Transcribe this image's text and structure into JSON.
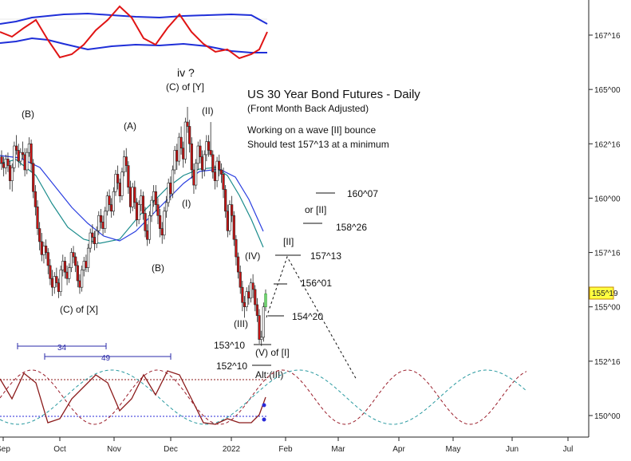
{
  "chart_data": {
    "type": "candlestick",
    "title": "US 30 Year Bond Futures - Daily",
    "subtitle": "(Front Month Back Adjusted)",
    "notes": [
      "Working on a wave [II] bounce",
      "Should test 157^13 at a minimum"
    ],
    "current_price": "155^19",
    "y_ticks": [
      {
        "label": "167^16",
        "value": 167.5
      },
      {
        "label": "165^00",
        "value": 165.0
      },
      {
        "label": "162^16",
        "value": 162.5
      },
      {
        "label": "160^00",
        "value": 160.0
      },
      {
        "label": "157^16",
        "value": 157.5
      },
      {
        "label": "155^00",
        "value": 155.0
      },
      {
        "label": "152^16",
        "value": 152.5
      },
      {
        "label": "150^00",
        "value": 150.0
      }
    ],
    "x_ticks": [
      "Sep",
      "Oct",
      "Nov",
      "Dec",
      "2022",
      "Feb",
      "Mar",
      "Apr",
      "May",
      "Jun",
      "Jul"
    ],
    "wave_labels": [
      {
        "text": "(B)",
        "date": 12,
        "price": 163.2
      },
      {
        "text": "(A)",
        "date": 59,
        "price": 162.7
      },
      {
        "text": "iv ?",
        "date": 105,
        "price": 165.4
      },
      {
        "text": "(C) of [Y]",
        "date": 105,
        "price": 164.8
      },
      {
        "text": "(II)",
        "date": 124,
        "price": 163.4
      },
      {
        "text": "(I)",
        "date": 111,
        "price": 159.6
      },
      {
        "text": "(B)",
        "date": 94,
        "price": 157.0
      },
      {
        "text": "(C) of [X]",
        "date": 37,
        "price": 154.6
      },
      {
        "text": "(IV)",
        "date": 150,
        "price": 157.2
      },
      {
        "text": "(III)",
        "date": 144,
        "price": 154.3
      },
      {
        "text": "[II]",
        "date": 172,
        "price": 157.8
      },
      {
        "text": "or [II]",
        "date": 187,
        "price": 159.6
      },
      {
        "text": "(V) of [I]",
        "date": 162,
        "price": 152.8
      },
      {
        "text": "Alt:(III)",
        "date": 161,
        "price": 152.0
      }
    ],
    "targets": [
      {
        "label": "160^07",
        "value": 160.22
      },
      {
        "label": "158^26",
        "value": 158.81
      },
      {
        "label": "157^13",
        "value": 157.41
      },
      {
        "label": "156^01",
        "value": 156.03
      },
      {
        "label": "154^20",
        "value": 154.63
      },
      {
        "label": "153^10",
        "value": 153.31
      },
      {
        "label": "152^10",
        "value": 152.31
      }
    ],
    "cycle_labels": [
      "34",
      "49"
    ],
    "candles": [
      [
        161.9,
        162.2,
        161.3,
        161.6
      ],
      [
        161.6,
        161.9,
        161.0,
        161.4
      ],
      [
        161.4,
        162.0,
        161.1,
        161.8
      ],
      [
        161.8,
        162.1,
        161.2,
        161.5
      ],
      [
        161.5,
        161.7,
        160.4,
        160.8
      ],
      [
        160.8,
        161.6,
        160.3,
        161.4
      ],
      [
        161.4,
        162.6,
        161.2,
        162.4
      ],
      [
        162.4,
        162.9,
        162.0,
        162.2
      ],
      [
        162.2,
        162.5,
        161.4,
        161.7
      ],
      [
        161.7,
        162.3,
        161.5,
        162.1
      ],
      [
        162.1,
        162.6,
        161.8,
        162.0
      ],
      [
        162.0,
        162.3,
        161.0,
        161.3
      ],
      [
        161.3,
        162.3,
        161.1,
        162.1
      ],
      [
        162.1,
        162.8,
        161.9,
        162.5
      ],
      [
        162.5,
        162.7,
        161.2,
        161.6
      ],
      [
        161.6,
        161.8,
        160.0,
        160.3
      ],
      [
        160.3,
        160.6,
        159.2,
        159.6
      ],
      [
        159.6,
        159.9,
        158.3,
        158.6
      ],
      [
        158.6,
        158.9,
        157.6,
        158.0
      ],
      [
        158.0,
        158.4,
        157.1,
        157.4
      ],
      [
        157.4,
        158.0,
        157.0,
        157.8
      ],
      [
        157.8,
        158.1,
        157.2,
        157.5
      ],
      [
        157.5,
        157.7,
        156.5,
        156.9
      ],
      [
        156.9,
        157.2,
        156.0,
        156.3
      ],
      [
        156.3,
        156.7,
        155.5,
        155.9
      ],
      [
        155.9,
        156.6,
        155.6,
        156.4
      ],
      [
        156.4,
        156.8,
        155.9,
        156.1
      ],
      [
        156.1,
        156.3,
        155.4,
        155.7
      ],
      [
        155.7,
        156.9,
        155.5,
        156.7
      ],
      [
        156.7,
        157.4,
        156.4,
        157.1
      ],
      [
        157.1,
        157.3,
        156.3,
        156.6
      ],
      [
        156.6,
        156.9,
        156.0,
        156.3
      ],
      [
        156.3,
        157.0,
        156.1,
        156.8
      ],
      [
        156.8,
        157.7,
        156.6,
        157.5
      ],
      [
        157.5,
        157.8,
        157.0,
        157.3
      ],
      [
        157.3,
        157.5,
        156.6,
        156.9
      ],
      [
        156.9,
        157.1,
        155.9,
        156.2
      ],
      [
        156.2,
        156.5,
        155.6,
        155.9
      ],
      [
        155.9,
        156.9,
        155.7,
        156.7
      ],
      [
        156.7,
        157.3,
        156.4,
        157.1
      ],
      [
        157.1,
        157.4,
        156.6,
        156.8
      ],
      [
        156.8,
        157.9,
        156.6,
        157.7
      ],
      [
        157.7,
        158.6,
        157.5,
        158.4
      ],
      [
        158.4,
        158.8,
        157.9,
        158.2
      ],
      [
        158.2,
        158.5,
        157.6,
        157.9
      ],
      [
        157.9,
        158.7,
        157.7,
        158.5
      ],
      [
        158.5,
        159.4,
        158.3,
        159.2
      ],
      [
        159.2,
        159.5,
        158.6,
        158.9
      ],
      [
        158.9,
        159.2,
        158.3,
        158.6
      ],
      [
        158.6,
        159.6,
        158.4,
        159.4
      ],
      [
        159.4,
        160.3,
        159.2,
        160.1
      ],
      [
        160.1,
        160.4,
        159.4,
        159.7
      ],
      [
        159.7,
        160.0,
        159.1,
        159.4
      ],
      [
        159.4,
        160.5,
        159.2,
        160.3
      ],
      [
        160.3,
        161.3,
        160.1,
        161.1
      ],
      [
        161.1,
        161.5,
        160.4,
        160.7
      ],
      [
        160.7,
        160.9,
        159.8,
        160.1
      ],
      [
        160.1,
        161.4,
        159.9,
        161.2
      ],
      [
        161.2,
        162.2,
        161.0,
        161.9
      ],
      [
        161.9,
        162.3,
        161.2,
        161.5
      ],
      [
        161.5,
        161.7,
        160.2,
        160.5
      ],
      [
        160.5,
        160.8,
        159.3,
        159.6
      ],
      [
        159.6,
        160.7,
        159.4,
        160.5
      ],
      [
        160.5,
        160.8,
        159.5,
        159.8
      ],
      [
        159.8,
        160.0,
        158.7,
        159.0
      ],
      [
        159.0,
        159.9,
        158.8,
        159.7
      ],
      [
        159.7,
        160.4,
        159.4,
        160.1
      ],
      [
        160.1,
        160.3,
        159.0,
        159.3
      ],
      [
        159.3,
        159.6,
        158.2,
        158.5
      ],
      [
        158.5,
        158.8,
        157.8,
        158.1
      ],
      [
        158.1,
        159.4,
        157.9,
        159.2
      ],
      [
        159.2,
        160.1,
        158.9,
        159.9
      ],
      [
        159.9,
        160.6,
        159.6,
        160.3
      ],
      [
        160.3,
        160.6,
        159.4,
        159.7
      ],
      [
        159.7,
        160.0,
        158.8,
        159.2
      ],
      [
        159.2,
        159.5,
        158.2,
        158.6
      ],
      [
        158.6,
        158.9,
        157.9,
        158.3
      ],
      [
        158.3,
        159.6,
        158.1,
        159.4
      ],
      [
        159.4,
        160.1,
        159.1,
        159.8
      ],
      [
        159.8,
        160.9,
        159.6,
        160.7
      ],
      [
        160.7,
        161.0,
        159.9,
        160.2
      ],
      [
        160.2,
        161.5,
        160.0,
        161.3
      ],
      [
        161.3,
        162.4,
        161.1,
        162.2
      ],
      [
        162.2,
        162.5,
        161.3,
        161.7
      ],
      [
        161.7,
        163.0,
        161.5,
        162.8
      ],
      [
        162.8,
        163.3,
        162.0,
        162.3
      ],
      [
        162.3,
        162.6,
        161.4,
        161.8
      ],
      [
        161.8,
        163.7,
        161.6,
        163.5
      ],
      [
        163.5,
        164.2,
        163.0,
        163.3
      ],
      [
        163.3,
        163.6,
        162.1,
        162.5
      ],
      [
        162.5,
        162.8,
        160.9,
        161.3
      ],
      [
        161.3,
        161.6,
        160.2,
        160.6
      ],
      [
        160.6,
        161.8,
        160.4,
        161.6
      ],
      [
        161.6,
        162.6,
        161.3,
        162.4
      ],
      [
        162.4,
        162.7,
        161.6,
        161.9
      ],
      [
        161.9,
        162.2,
        160.9,
        161.3
      ],
      [
        161.3,
        162.2,
        161.0,
        162.0
      ],
      [
        162.0,
        162.9,
        161.7,
        162.6
      ],
      [
        162.6,
        162.9,
        161.9,
        162.2
      ],
      [
        162.2,
        163.5,
        161.9,
        162.0
      ],
      [
        162.0,
        162.2,
        160.9,
        161.2
      ],
      [
        161.2,
        161.5,
        160.4,
        160.8
      ],
      [
        160.8,
        161.9,
        160.5,
        161.7
      ],
      [
        161.7,
        162.0,
        161.0,
        161.3
      ],
      [
        161.3,
        161.6,
        160.7,
        161.1
      ],
      [
        161.1,
        161.4,
        160.0,
        160.4
      ],
      [
        160.4,
        160.6,
        159.1,
        159.4
      ],
      [
        159.4,
        159.7,
        158.2,
        158.5
      ],
      [
        158.5,
        159.9,
        158.3,
        159.7
      ],
      [
        159.7,
        160.1,
        158.9,
        159.2
      ],
      [
        159.2,
        159.4,
        157.8,
        158.1
      ],
      [
        158.1,
        158.3,
        156.9,
        157.3
      ],
      [
        157.3,
        157.5,
        156.3,
        156.6
      ],
      [
        156.6,
        156.9,
        155.6,
        155.9
      ],
      [
        155.9,
        156.2,
        154.8,
        155.2
      ],
      [
        155.2,
        155.5,
        154.5,
        155.0
      ],
      [
        155.0,
        155.9,
        154.8,
        155.7
      ],
      [
        155.7,
        156.0,
        155.1,
        155.4
      ],
      [
        155.4,
        156.3,
        155.2,
        156.1
      ],
      [
        156.1,
        156.5,
        155.4,
        155.8
      ],
      [
        155.8,
        156.0,
        154.8,
        155.1
      ],
      [
        155.1,
        155.4,
        154.3,
        154.6
      ],
      [
        154.6,
        154.9,
        153.3,
        153.5
      ],
      [
        153.5,
        153.9,
        153.2,
        153.6
      ],
      [
        153.6,
        155.2,
        153.4,
        155.0
      ],
      [
        155.0,
        155.8,
        154.8,
        155.6
      ]
    ]
  }
}
